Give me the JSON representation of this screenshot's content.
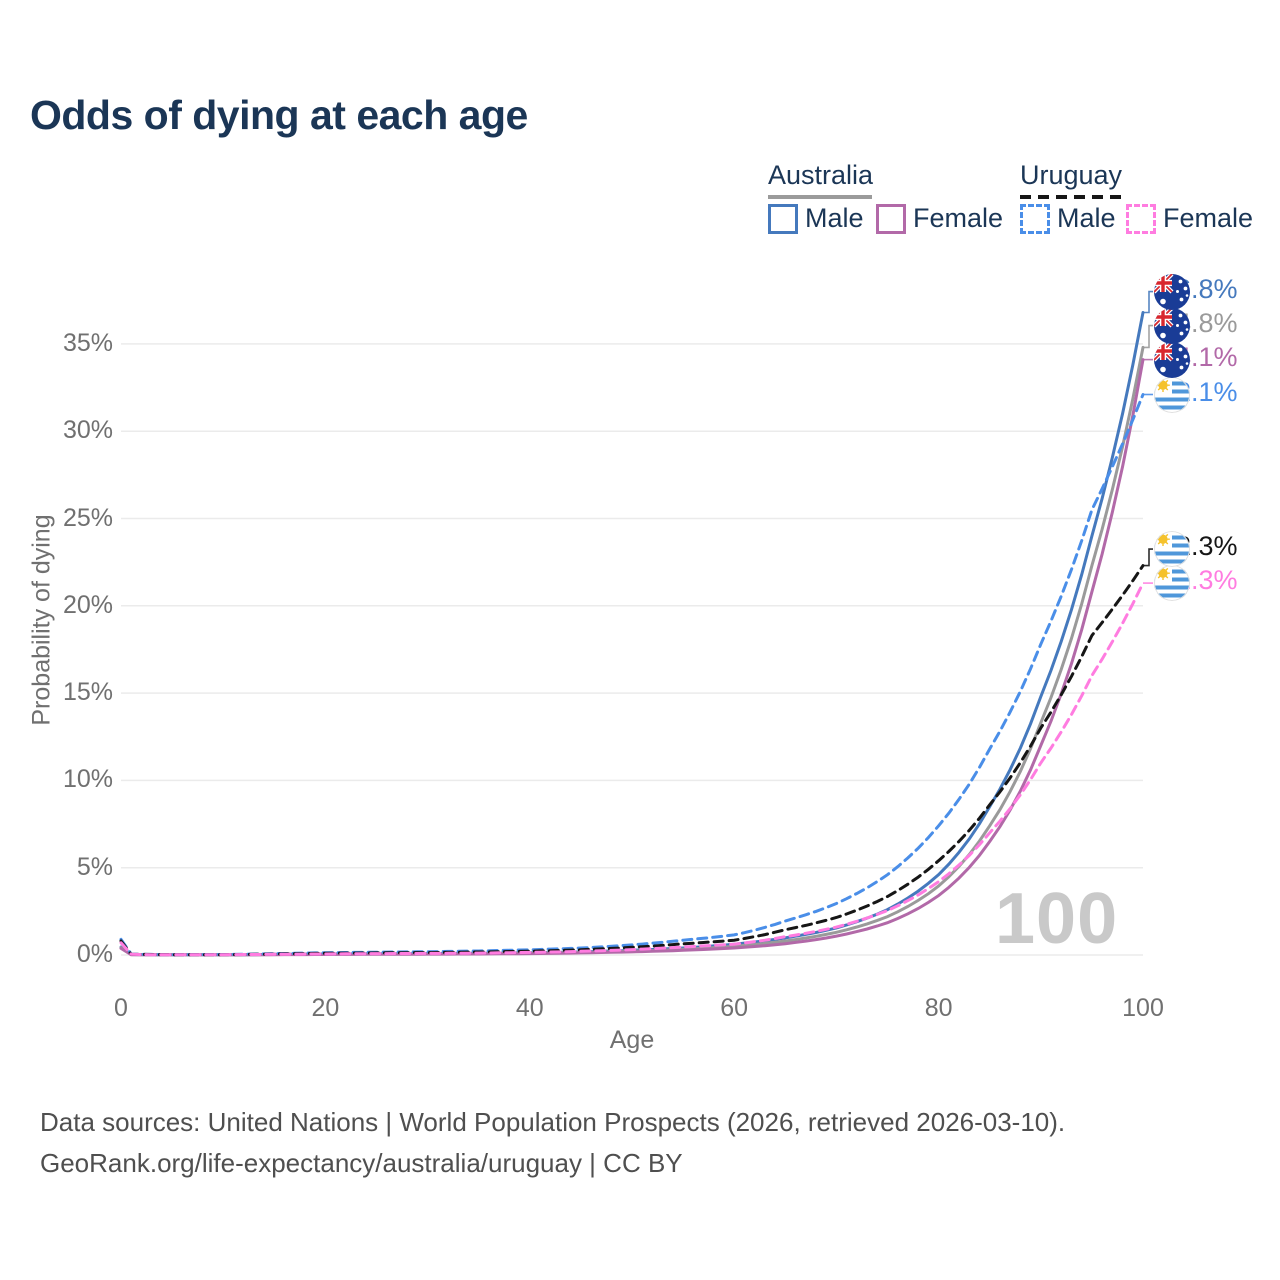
{
  "title": "Odds of dying at each age",
  "legend": {
    "groups": [
      {
        "label": "Australia",
        "underline_style": "solid",
        "underline_color": "#9b9b9b",
        "items": [
          {
            "label": "Male",
            "color": "#4579bd",
            "dash": false
          },
          {
            "label": "Female",
            "color": "#b269a8",
            "dash": false
          }
        ]
      },
      {
        "label": "Uruguay",
        "underline_style": "dashed",
        "underline_color": "#161616",
        "items": [
          {
            "label": "Male",
            "color": "#4a8ee8",
            "dash": true
          },
          {
            "label": "Female",
            "color": "#ff7ce0",
            "dash": true
          }
        ]
      }
    ]
  },
  "watermark": "100",
  "footer": {
    "line1": "Data sources: United Nations | World Population Prospects (2026, retrieved 2026-03-10).",
    "line2": "GeoRank.org/life-expectancy/australia/uruguay | CC BY"
  },
  "chart_data": {
    "type": "line",
    "title": "Odds of dying at each age",
    "xlabel": "Age",
    "ylabel": "Probability of dying",
    "xlim": [
      0,
      100
    ],
    "ylim_pct": [
      0,
      38
    ],
    "x_ticks": [
      0,
      20,
      40,
      60,
      80,
      100
    ],
    "y_ticks": [
      {
        "value": 0,
        "label": "0%"
      },
      {
        "value": 5,
        "label": "5%"
      },
      {
        "value": 10,
        "label": "10%"
      },
      {
        "value": 15,
        "label": "15%"
      },
      {
        "value": 20,
        "label": "20%"
      },
      {
        "value": 25,
        "label": "25%"
      },
      {
        "value": 30,
        "label": "30%"
      },
      {
        "value": 35,
        "label": "35%"
      }
    ],
    "grid": "horizontal",
    "legend_position": "top-right",
    "ages": [
      0,
      1,
      5,
      10,
      15,
      20,
      25,
      30,
      35,
      40,
      45,
      50,
      55,
      60,
      65,
      70,
      75,
      80,
      85,
      90,
      95,
      100
    ],
    "series": [
      {
        "name": "Australia Male",
        "country": "australia",
        "sex": "male",
        "color": "#4579bd",
        "dash": false,
        "end_label": "36.8%",
        "end_value_pct": 36.8,
        "values_pct": [
          0.45,
          0.03,
          0.01,
          0.01,
          0.04,
          0.06,
          0.07,
          0.08,
          0.1,
          0.13,
          0.18,
          0.27,
          0.4,
          0.62,
          0.98,
          1.55,
          2.6,
          4.6,
          8.5,
          14.8,
          24.0,
          36.8
        ]
      },
      {
        "name": "Australia Both sexes",
        "country": "australia",
        "sex": "both",
        "color": "#9a9a9a",
        "dash": false,
        "end_label": "34.8%",
        "end_value_pct": 34.8,
        "values_pct": [
          0.42,
          0.03,
          0.01,
          0.01,
          0.03,
          0.05,
          0.06,
          0.06,
          0.08,
          0.11,
          0.15,
          0.22,
          0.33,
          0.5,
          0.8,
          1.3,
          2.2,
          3.95,
          7.4,
          13.3,
          22.3,
          34.8
        ]
      },
      {
        "name": "Australia Female",
        "country": "australia",
        "sex": "female",
        "color": "#b269a8",
        "dash": false,
        "end_label": "34.1%",
        "end_value_pct": 34.1,
        "values_pct": [
          0.38,
          0.02,
          0.01,
          0.01,
          0.02,
          0.03,
          0.04,
          0.05,
          0.06,
          0.08,
          0.12,
          0.18,
          0.27,
          0.4,
          0.65,
          1.08,
          1.85,
          3.4,
          6.5,
          12.0,
          20.8,
          34.1
        ]
      },
      {
        "name": "Uruguay Male",
        "country": "uruguay",
        "sex": "male",
        "color": "#4a8ee8",
        "dash": true,
        "end_label": "32.1%",
        "end_value_pct": 32.1,
        "values_pct": [
          0.9,
          0.05,
          0.02,
          0.03,
          0.08,
          0.13,
          0.16,
          0.19,
          0.23,
          0.3,
          0.4,
          0.58,
          0.85,
          1.15,
          1.95,
          2.95,
          4.6,
          7.4,
          11.8,
          17.8,
          25.5,
          32.1
        ]
      },
      {
        "name": "Uruguay Both sexes",
        "country": "uruguay",
        "sex": "both",
        "color": "#161616",
        "dash": true,
        "end_label": "22.3%",
        "end_value_pct": 22.3,
        "values_pct": [
          0.8,
          0.04,
          0.02,
          0.02,
          0.06,
          0.1,
          0.12,
          0.14,
          0.17,
          0.22,
          0.3,
          0.44,
          0.64,
          0.85,
          1.45,
          2.15,
          3.35,
          5.4,
          8.6,
          13.0,
          18.3,
          22.3
        ]
      },
      {
        "name": "Uruguay Female",
        "country": "uruguay",
        "sex": "female",
        "color": "#ff7ce0",
        "dash": true,
        "end_label": "21.3%",
        "end_value_pct": 21.3,
        "values_pct": [
          0.7,
          0.04,
          0.01,
          0.02,
          0.04,
          0.06,
          0.08,
          0.09,
          0.11,
          0.15,
          0.21,
          0.31,
          0.46,
          0.62,
          1.05,
          1.6,
          2.55,
          4.2,
          7.0,
          11.0,
          16.0,
          21.3
        ]
      }
    ]
  }
}
